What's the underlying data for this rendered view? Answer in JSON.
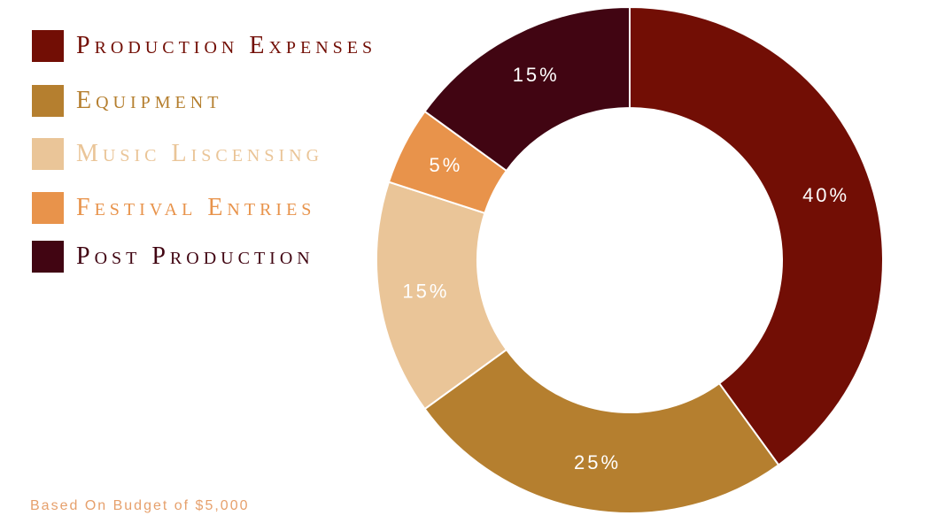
{
  "chart_data": {
    "type": "pie",
    "donut": true,
    "categories": [
      "Production Expenses",
      "Equipment",
      "Music Liscensing",
      "Festival Entries",
      "Post Production"
    ],
    "values": [
      40,
      25,
      15,
      5,
      15
    ],
    "labels": [
      "40%",
      "25%",
      "15%",
      "5%",
      "15%"
    ],
    "colors": [
      "#720e05",
      "#b57f2f",
      "#eac598",
      "#e8934b",
      "#410512"
    ],
    "legend_placement": "top-left",
    "start_angle": "top, clockwise"
  },
  "legend": {
    "items": [
      {
        "label": "Production Expenses",
        "color": "#720e05"
      },
      {
        "label": "Equipment",
        "color": "#b57f2f"
      },
      {
        "label": "Music Liscensing",
        "color": "#eac598"
      },
      {
        "label": "Festival Entries",
        "color": "#e8934b"
      },
      {
        "label": "Post Production",
        "color": "#410512"
      }
    ]
  },
  "footnote": "Based On Budget of $5,000"
}
